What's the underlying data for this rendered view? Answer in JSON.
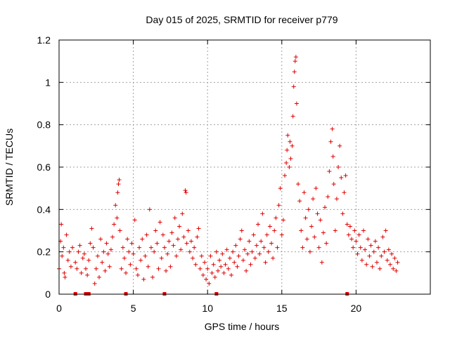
{
  "chart_data": {
    "type": "scatter",
    "title": "Day 015 of 2025, SRMTID for receiver p779",
    "xlabel": "GPS time / hours",
    "ylabel": "SRMTID / TECUs",
    "xlim": [
      0,
      25
    ],
    "ylim": [
      0,
      1.2
    ],
    "x_ticks": [
      0,
      5,
      10,
      15,
      20
    ],
    "x_tick_labels": [
      "0",
      "5",
      "10",
      "15",
      "20"
    ],
    "y_ticks": [
      0,
      0.2,
      0.4,
      0.6,
      0.8,
      1.0,
      1.2
    ],
    "y_tick_labels": [
      "0",
      "0.2",
      "0.4",
      "0.6",
      "0.8",
      "1",
      "1.2"
    ],
    "grid": true,
    "marker": "+",
    "color": "#e00000",
    "series": [
      {
        "name": "SRMTID",
        "points": [
          [
            0.0,
            0.12
          ],
          [
            0.1,
            0.25
          ],
          [
            0.15,
            0.33
          ],
          [
            0.2,
            0.18
          ],
          [
            0.3,
            0.22
          ],
          [
            0.35,
            0.1
          ],
          [
            0.4,
            0.08
          ],
          [
            0.5,
            0.28
          ],
          [
            0.6,
            0.16
          ],
          [
            0.7,
            0.2
          ],
          [
            0.8,
            0.13
          ],
          [
            0.9,
            0.22
          ],
          [
            1.1,
            0.15
          ],
          [
            1.2,
            0.12
          ],
          [
            1.3,
            0.2
          ],
          [
            1.4,
            0.23
          ],
          [
            1.5,
            0.1
          ],
          [
            1.6,
            0.17
          ],
          [
            1.7,
            0.19
          ],
          [
            1.8,
            0.12
          ],
          [
            1.9,
            0.09
          ],
          [
            2.0,
            0.16
          ],
          [
            2.1,
            0.24
          ],
          [
            2.2,
            0.31
          ],
          [
            2.3,
            0.22
          ],
          [
            2.4,
            0.05
          ],
          [
            2.5,
            0.12
          ],
          [
            2.6,
            0.18
          ],
          [
            2.7,
            0.08
          ],
          [
            2.8,
            0.26
          ],
          [
            2.9,
            0.15
          ],
          [
            3.0,
            0.2
          ],
          [
            3.1,
            0.11
          ],
          [
            3.2,
            0.24
          ],
          [
            3.3,
            0.19
          ],
          [
            3.4,
            0.13
          ],
          [
            3.5,
            0.21
          ],
          [
            3.6,
            0.27
          ],
          [
            3.7,
            0.33
          ],
          [
            3.8,
            0.42
          ],
          [
            3.9,
            0.36
          ],
          [
            3.95,
            0.48
          ],
          [
            4.0,
            0.52
          ],
          [
            4.05,
            0.54
          ],
          [
            4.1,
            0.3
          ],
          [
            4.2,
            0.12
          ],
          [
            4.3,
            0.22
          ],
          [
            4.4,
            0.17
          ],
          [
            4.5,
            0.1
          ],
          [
            4.6,
            0.26
          ],
          [
            4.7,
            0.2
          ],
          [
            4.8,
            0.14
          ],
          [
            4.9,
            0.24
          ],
          [
            5.0,
            0.19
          ],
          [
            5.1,
            0.35
          ],
          [
            5.2,
            0.12
          ],
          [
            5.3,
            0.09
          ],
          [
            5.4,
            0.22
          ],
          [
            5.5,
            0.16
          ],
          [
            5.6,
            0.26
          ],
          [
            5.7,
            0.07
          ],
          [
            5.8,
            0.18
          ],
          [
            5.9,
            0.28
          ],
          [
            6.0,
            0.13
          ],
          [
            6.1,
            0.4
          ],
          [
            6.2,
            0.22
          ],
          [
            6.3,
            0.08
          ],
          [
            6.4,
            0.2
          ],
          [
            6.5,
            0.3
          ],
          [
            6.6,
            0.24
          ],
          [
            6.7,
            0.12
          ],
          [
            6.8,
            0.34
          ],
          [
            6.9,
            0.17
          ],
          [
            7.0,
            0.28
          ],
          [
            7.1,
            0.22
          ],
          [
            7.2,
            0.11
          ],
          [
            7.3,
            0.19
          ],
          [
            7.4,
            0.25
          ],
          [
            7.5,
            0.13
          ],
          [
            7.6,
            0.29
          ],
          [
            7.7,
            0.23
          ],
          [
            7.8,
            0.36
          ],
          [
            7.9,
            0.18
          ],
          [
            8.0,
            0.26
          ],
          [
            8.1,
            0.32
          ],
          [
            8.2,
            0.21
          ],
          [
            8.3,
            0.38
          ],
          [
            8.4,
            0.27
          ],
          [
            8.5,
            0.49
          ],
          [
            8.55,
            0.48
          ],
          [
            8.6,
            0.24
          ],
          [
            8.7,
            0.3
          ],
          [
            8.8,
            0.2
          ],
          [
            8.9,
            0.25
          ],
          [
            9.0,
            0.17
          ],
          [
            9.1,
            0.22
          ],
          [
            9.2,
            0.14
          ],
          [
            9.3,
            0.27
          ],
          [
            9.4,
            0.31
          ],
          [
            9.5,
            0.12
          ],
          [
            9.6,
            0.18
          ],
          [
            9.7,
            0.09
          ],
          [
            9.8,
            0.15
          ],
          [
            9.9,
            0.07
          ],
          [
            10.0,
            0.12
          ],
          [
            10.1,
            0.05
          ],
          [
            10.2,
            0.18
          ],
          [
            10.3,
            0.1
          ],
          [
            10.4,
            0.14
          ],
          [
            10.5,
            0.08
          ],
          [
            10.6,
            0.2
          ],
          [
            10.7,
            0.11
          ],
          [
            10.8,
            0.16
          ],
          [
            10.9,
            0.13
          ],
          [
            11.0,
            0.19
          ],
          [
            11.1,
            0.1
          ],
          [
            11.2,
            0.14
          ],
          [
            11.3,
            0.21
          ],
          [
            11.4,
            0.12
          ],
          [
            11.5,
            0.17
          ],
          [
            11.6,
            0.09
          ],
          [
            11.7,
            0.2
          ],
          [
            11.8,
            0.15
          ],
          [
            11.9,
            0.23
          ],
          [
            12.0,
            0.13
          ],
          [
            12.1,
            0.18
          ],
          [
            12.2,
            0.26
          ],
          [
            12.3,
            0.3
          ],
          [
            12.4,
            0.16
          ],
          [
            12.5,
            0.21
          ],
          [
            12.6,
            0.11
          ],
          [
            12.7,
            0.19
          ],
          [
            12.8,
            0.25
          ],
          [
            12.9,
            0.14
          ],
          [
            13.0,
            0.2
          ],
          [
            13.1,
            0.28
          ],
          [
            13.2,
            0.17
          ],
          [
            13.3,
            0.23
          ],
          [
            13.4,
            0.33
          ],
          [
            13.5,
            0.19
          ],
          [
            13.6,
            0.25
          ],
          [
            13.7,
            0.38
          ],
          [
            13.8,
            0.22
          ],
          [
            13.9,
            0.15
          ],
          [
            14.0,
            0.28
          ],
          [
            14.1,
            0.2
          ],
          [
            14.2,
            0.32
          ],
          [
            14.3,
            0.24
          ],
          [
            14.4,
            0.17
          ],
          [
            14.5,
            0.3
          ],
          [
            14.6,
            0.36
          ],
          [
            14.7,
            0.22
          ],
          [
            14.8,
            0.42
          ],
          [
            14.9,
            0.5
          ],
          [
            15.0,
            0.28
          ],
          [
            15.1,
            0.35
          ],
          [
            15.2,
            0.56
          ],
          [
            15.3,
            0.62
          ],
          [
            15.35,
            0.68
          ],
          [
            15.4,
            0.75
          ],
          [
            15.5,
            0.6
          ],
          [
            15.55,
            0.72
          ],
          [
            15.6,
            0.64
          ],
          [
            15.7,
            0.7
          ],
          [
            15.75,
            0.84
          ],
          [
            15.8,
            0.98
          ],
          [
            15.85,
            1.05
          ],
          [
            15.9,
            1.1
          ],
          [
            15.95,
            1.12
          ],
          [
            16.0,
            0.9
          ],
          [
            16.1,
            0.52
          ],
          [
            16.2,
            0.44
          ],
          [
            16.3,
            0.3
          ],
          [
            16.4,
            0.22
          ],
          [
            16.5,
            0.48
          ],
          [
            16.6,
            0.36
          ],
          [
            16.7,
            0.26
          ],
          [
            16.8,
            0.4
          ],
          [
            16.9,
            0.2
          ],
          [
            17.0,
            0.32
          ],
          [
            17.1,
            0.45
          ],
          [
            17.2,
            0.27
          ],
          [
            17.3,
            0.5
          ],
          [
            17.4,
            0.38
          ],
          [
            17.5,
            0.22
          ],
          [
            17.6,
            0.35
          ],
          [
            17.7,
            0.15
          ],
          [
            17.8,
            0.29
          ],
          [
            17.9,
            0.41
          ],
          [
            18.0,
            0.24
          ],
          [
            18.1,
            0.46
          ],
          [
            18.2,
            0.58
          ],
          [
            18.3,
            0.72
          ],
          [
            18.4,
            0.78
          ],
          [
            18.45,
            0.65
          ],
          [
            18.5,
            0.52
          ],
          [
            18.6,
            0.3
          ],
          [
            18.7,
            0.45
          ],
          [
            18.8,
            0.6
          ],
          [
            18.9,
            0.7
          ],
          [
            19.0,
            0.55
          ],
          [
            19.1,
            0.38
          ],
          [
            19.2,
            0.48
          ],
          [
            19.3,
            0.56
          ],
          [
            19.4,
            0.33
          ],
          [
            19.5,
            0.28
          ],
          [
            19.6,
            0.32
          ],
          [
            19.7,
            0.26
          ],
          [
            19.8,
            0.22
          ],
          [
            19.9,
            0.3
          ],
          [
            20.0,
            0.25
          ],
          [
            20.1,
            0.19
          ],
          [
            20.2,
            0.28
          ],
          [
            20.3,
            0.22
          ],
          [
            20.4,
            0.16
          ],
          [
            20.5,
            0.3
          ],
          [
            20.6,
            0.21
          ],
          [
            20.7,
            0.14
          ],
          [
            20.8,
            0.26
          ],
          [
            20.9,
            0.18
          ],
          [
            21.0,
            0.23
          ],
          [
            21.1,
            0.13
          ],
          [
            21.2,
            0.2
          ],
          [
            21.3,
            0.25
          ],
          [
            21.4,
            0.15
          ],
          [
            21.5,
            0.22
          ],
          [
            21.6,
            0.12
          ],
          [
            21.7,
            0.18
          ],
          [
            21.8,
            0.27
          ],
          [
            21.9,
            0.2
          ],
          [
            22.0,
            0.3
          ],
          [
            22.1,
            0.16
          ],
          [
            22.2,
            0.21
          ],
          [
            22.3,
            0.14
          ],
          [
            22.4,
            0.19
          ],
          [
            22.5,
            0.12
          ],
          [
            22.6,
            0.17
          ],
          [
            22.7,
            0.11
          ],
          [
            22.8,
            0.15
          ]
        ]
      }
    ],
    "gap_markers_x": [
      1.1,
      1.8,
      2.0,
      4.5,
      7.1,
      10.6,
      19.4
    ]
  }
}
